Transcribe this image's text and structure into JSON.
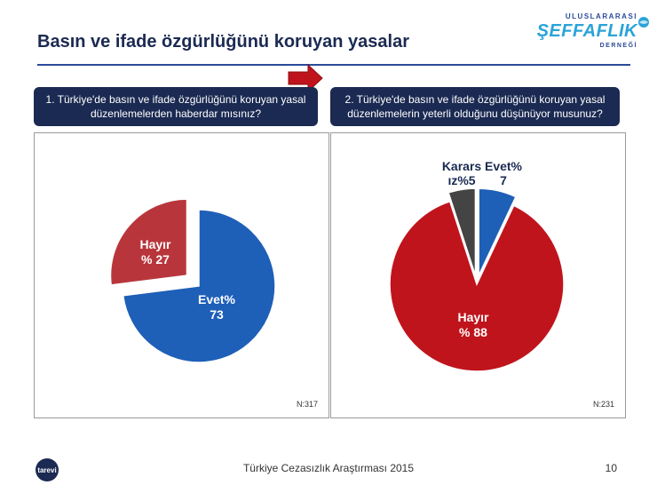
{
  "title": "Basın ve ifade özgürlüğünü koruyan yasalar",
  "logo": {
    "line1": "ULUSLARARASI",
    "line2": "ŞEFFAFLIK",
    "line3": "DERNEĞİ"
  },
  "footer": {
    "text": "Türkiye Cezasızlık Araştırması 2015",
    "page": "10",
    "logo_text": "tarevi"
  },
  "colors": {
    "blue": "#1e5fb8",
    "red": "#c0141c",
    "red_light": "#b8363b",
    "dark": "#444444",
    "navy": "#1b2a52"
  },
  "chart_data": [
    {
      "type": "pie",
      "question": "1. Türkiye'de basın ve ifade özgürlüğünü koruyan yasal düzenlemelerden haberdar mısınız?",
      "n_label": "N:317",
      "slices": [
        {
          "name": "Evet",
          "value": 73,
          "label_lines": [
            "Evet%",
            "73"
          ],
          "color": "#1e5fb8",
          "exploded": false
        },
        {
          "name": "Hayır",
          "value": 27,
          "label_lines": [
            "Hayır",
            "% 27"
          ],
          "color": "#b8363b",
          "exploded": true
        }
      ]
    },
    {
      "type": "pie",
      "question": "2. Türkiye'de basın ve ifade özgürlüğünü koruyan yasal düzenlemelerin yeterli olduğunu düşünüyor musunuz?",
      "n_label": "N:231",
      "slices": [
        {
          "name": "Evet",
          "value": 7,
          "label_lines": [
            "Evet%",
            "7"
          ],
          "color": "#1e5fb8",
          "exploded": true
        },
        {
          "name": "Hayır",
          "value": 88,
          "label_lines": [
            "Hayır",
            "% 88"
          ],
          "color": "#c0141c",
          "exploded": false
        },
        {
          "name": "Kararsız",
          "value": 5,
          "label_lines": [
            "Karars",
            "ız%5"
          ],
          "color": "#444444",
          "exploded": true
        }
      ]
    }
  ]
}
